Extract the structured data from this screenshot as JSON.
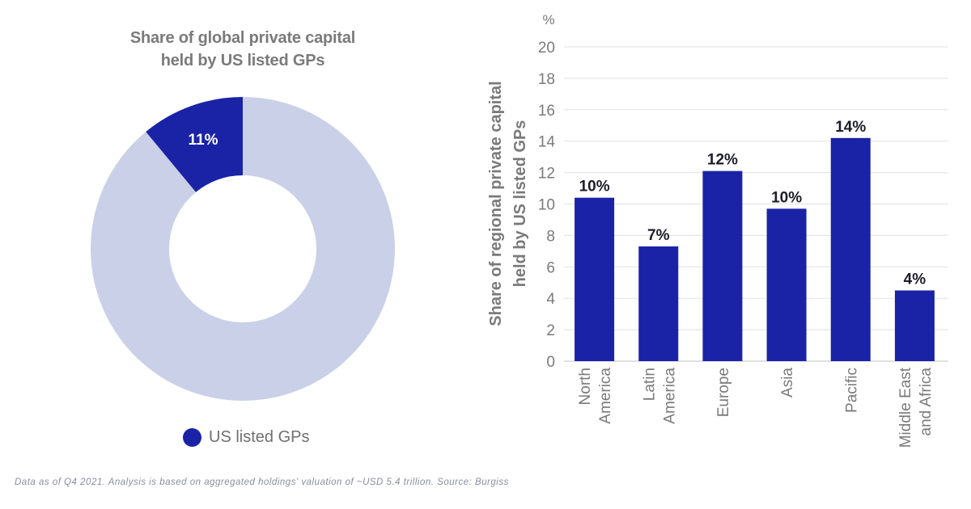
{
  "colors": {
    "accent": "#1a23a6",
    "donut_rest": "#c9d0e8",
    "axis_text": "#7a7a7a",
    "grid": "#e6e6e6",
    "label_dark": "#1c1c2a"
  },
  "footnote": "Data as of Q4 2021. Analysis is based on aggregated holdings' valuation of ~USD 5.4 trillion. Source: Burgiss",
  "legend": {
    "label": "US listed GPs",
    "icon": "circle-swatch-icon"
  },
  "chart_data": [
    {
      "type": "pie",
      "variant": "donut",
      "title": "Share of global private capital held by US listed GPs",
      "title_lines": [
        "Share of global private capital",
        "held by US listed GPs"
      ],
      "slices": [
        {
          "name": "US listed GPs",
          "value": 11,
          "label": "11%"
        },
        {
          "name": "Other",
          "value": 89,
          "label": ""
        }
      ],
      "legend": [
        "US listed GPs"
      ],
      "legend_position": "bottom"
    },
    {
      "type": "bar",
      "title": "",
      "unit_label": "%",
      "ylabel": "Share of regional private capital held by US listed GPs",
      "ylabel_lines": [
        "Share of regional private capital",
        "held by US listed GPs"
      ],
      "xlabel": "",
      "ylim": [
        0,
        20
      ],
      "yticks": [
        0,
        2,
        4,
        6,
        8,
        10,
        12,
        14,
        16,
        18,
        20
      ],
      "grid": true,
      "categories": [
        "North America",
        "Latin America",
        "Europe",
        "Asia",
        "Pacific",
        "Middle East and Africa"
      ],
      "category_lines": [
        [
          "North",
          "America"
        ],
        [
          "Latin",
          "America"
        ],
        [
          "Europe"
        ],
        [
          "Asia"
        ],
        [
          "Pacific"
        ],
        [
          "Middle East",
          "and Africa"
        ]
      ],
      "values": [
        10.4,
        7.3,
        12.1,
        9.7,
        14.2,
        4.5
      ],
      "data_labels": [
        "10%",
        "7%",
        "12%",
        "10%",
        "14%",
        "4%"
      ]
    }
  ]
}
